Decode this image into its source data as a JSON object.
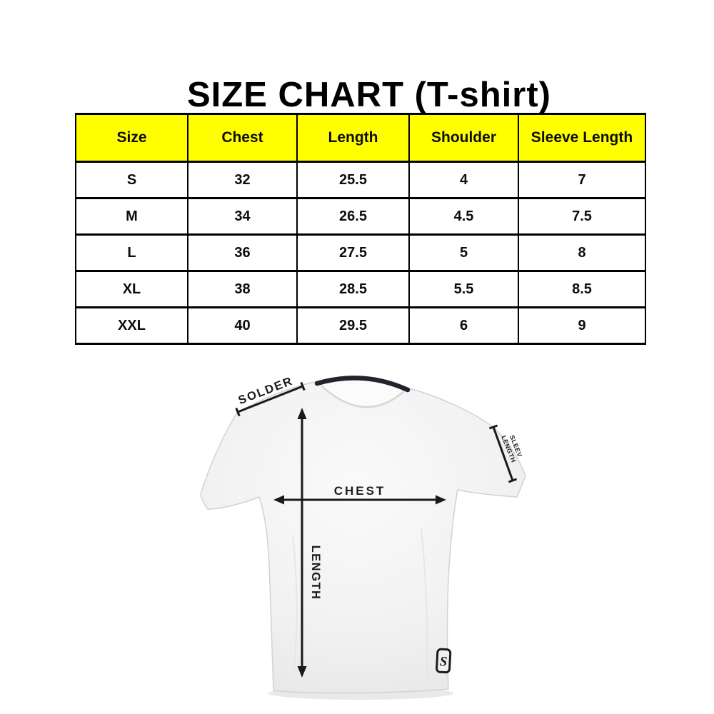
{
  "title": "SIZE CHART (T-shirt)",
  "table": {
    "headers": [
      "Size",
      "Chest",
      "Length",
      "Shoulder",
      "Sleeve Length"
    ],
    "rows": [
      [
        "S",
        "32",
        "25.5",
        "4",
        "7"
      ],
      [
        "M",
        "34",
        "26.5",
        "4.5",
        "7.5"
      ],
      [
        "L",
        "36",
        "27.5",
        "5",
        "8"
      ],
      [
        "XL",
        "38",
        "28.5",
        "5.5",
        "8.5"
      ],
      [
        "XXL",
        "40",
        "29.5",
        "6",
        "9"
      ]
    ],
    "header_bg": "#ffff00",
    "border_color": "#000000",
    "text_color": "#0d0d0d"
  },
  "diagram": {
    "shoulder_label": "SOLDER",
    "sleeve_label_line1": "SLEEV",
    "sleeve_label_line2": "LENGTH",
    "chest_label": "CHEST",
    "length_label": "LENGTH",
    "brand_tag_letter": "S",
    "shirt_color": "#f2f2f2",
    "collar_color": "#23232d",
    "annotation_color": "#1a1a1a"
  }
}
